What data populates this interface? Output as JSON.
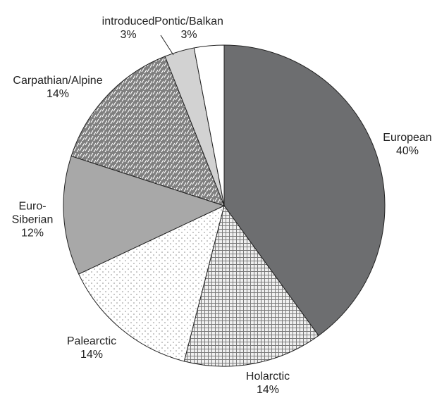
{
  "chart_data": {
    "type": "pie",
    "categories": [
      "European",
      "Holarctic",
      "Palearctic",
      "Euro-Siberian",
      "Carpathian/Alpine",
      "introduced",
      "Pontic/Balkan"
    ],
    "values": [
      40,
      14,
      14,
      12,
      14,
      3,
      3
    ],
    "value_labels": [
      "40%",
      "14%",
      "14%",
      "12%",
      "14%",
      "3%",
      "3%"
    ],
    "colors": [
      "#6d6e70",
      "#8a8a8a",
      "#ffffff",
      "#a8a8a8",
      "#7f7f7f",
      "#d2d2d2",
      "#ffffff"
    ],
    "patterns": [
      "solid",
      "grid",
      "dots",
      "solid",
      "hatch",
      "solid",
      "solid"
    ]
  }
}
